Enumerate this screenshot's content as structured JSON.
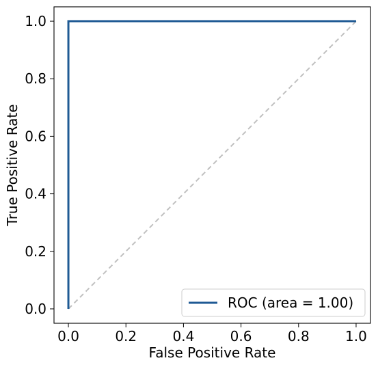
{
  "chart_data": {
    "type": "line",
    "title": "",
    "xlabel": "False Positive Rate",
    "ylabel": "True Positive Rate",
    "xlim": [
      -0.05,
      1.05
    ],
    "ylim": [
      -0.05,
      1.05
    ],
    "xticks": [
      "0.0",
      "0.2",
      "0.4",
      "0.6",
      "0.8",
      "1.0"
    ],
    "yticks": [
      "0.0",
      "0.2",
      "0.4",
      "0.6",
      "0.8",
      "1.0"
    ],
    "grid": false,
    "legend_position": "lower-right",
    "series": [
      {
        "name": "ROC (area = 1.00)",
        "color": "#1f5a94",
        "style": "solid",
        "x": [
          0.0,
          0.0,
          1.0
        ],
        "y": [
          0.0,
          1.0,
          1.0
        ]
      },
      {
        "color": "#c0c0c0",
        "style": "dashed",
        "x": [
          0.0,
          1.0
        ],
        "y": [
          0.0,
          1.0
        ]
      }
    ]
  }
}
